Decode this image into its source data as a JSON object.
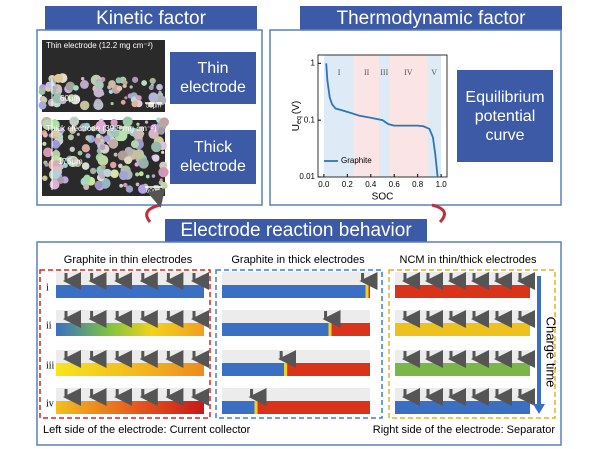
{
  "kinetic": {
    "title": "Kinetic factor",
    "thin": {
      "caption": "Thin electrode (12.2 mg cm⁻²)",
      "thickness": "60μm",
      "scale": "50μm",
      "label": "Thin electrode"
    },
    "thick": {
      "caption": "Thick electrode (39.5 mg cm⁻²)",
      "thickness": "175μm",
      "scale": "50μm",
      "label": "Thick electrode"
    }
  },
  "thermodynamic": {
    "title": "Thermodynamic factor",
    "label": "Equilibrium potential curve",
    "chart": {
      "type": "line",
      "x_label": "SOC",
      "y_label_main": "U",
      "y_label_sub": "eq",
      "y_label_unit": "(V)",
      "log_y": true,
      "xlim": [
        -0.05,
        1.05
      ],
      "ylim": [
        0.01,
        1.4
      ],
      "xticks": [
        {
          "value": 0,
          "label": "0.0"
        },
        {
          "value": 0.2,
          "label": "0.2"
        },
        {
          "value": 0.4,
          "label": "0.4"
        },
        {
          "value": 0.6,
          "label": "0.6"
        },
        {
          "value": 0.8,
          "label": "0.8"
        },
        {
          "value": 1,
          "label": "1.0"
        }
      ],
      "yticks": [
        0.01,
        0.1,
        1
      ],
      "regions": [
        {
          "label": "I",
          "start": 0,
          "end": 0.26,
          "color": "#deebf7"
        },
        {
          "label": "II",
          "start": 0.26,
          "end": 0.47,
          "color": "#fbe4e4"
        },
        {
          "label": "III",
          "start": 0.47,
          "end": 0.56,
          "color": "#deebf7"
        },
        {
          "label": "IV",
          "start": 0.56,
          "end": 0.88,
          "color": "#fbe4e4"
        },
        {
          "label": "V",
          "start": 0.88,
          "end": 1,
          "color": "#deebf7"
        }
      ],
      "series": [
        {
          "name": "Graphite",
          "color": "#2e75b6",
          "x": [
            0.02,
            0.03,
            0.05,
            0.07,
            0.1,
            0.15,
            0.2,
            0.25,
            0.3,
            0.4,
            0.5,
            0.55,
            0.6,
            0.7,
            0.8,
            0.85,
            0.9,
            0.93,
            0.95,
            0.97
          ],
          "values": [
            1.0,
            0.5,
            0.25,
            0.19,
            0.16,
            0.15,
            0.14,
            0.13,
            0.12,
            0.11,
            0.1,
            0.085,
            0.08,
            0.08,
            0.08,
            0.078,
            0.07,
            0.05,
            0.025,
            0.01
          ]
        }
      ]
    }
  },
  "reaction": {
    "title": "Electrode reaction behavior",
    "columns": [
      "Graphite in thin electrodes",
      "Graphite in thick electrodes",
      "NCM in thin/thick electrodes"
    ],
    "rows": [
      "i",
      "ii",
      "iii",
      "iv"
    ],
    "axis_label": "Charge time",
    "footer_left": "Left side of the electrode: Current collector",
    "footer_right": "Right side of the electrode: Separator"
  }
}
